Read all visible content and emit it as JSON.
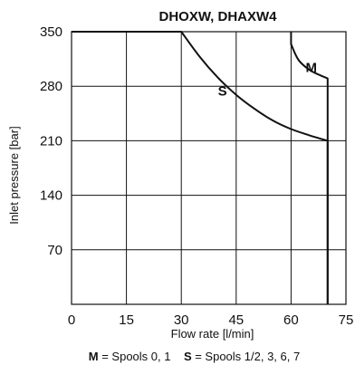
{
  "chart_data": {
    "type": "line",
    "title": "DHOXW, DHAXW4",
    "xlabel": "Flow rate [l/min]",
    "ylabel": "Inlet pressure [bar]",
    "xlim": [
      0,
      75
    ],
    "ylim": [
      0,
      350
    ],
    "xticks": [
      "0",
      "15",
      "30",
      "45",
      "60",
      "75"
    ],
    "yticks": [
      "70",
      "140",
      "210",
      "280",
      "350"
    ],
    "grid": true,
    "series": [
      {
        "name": "S",
        "points": [
          [
            0,
            350
          ],
          [
            30,
            350
          ],
          [
            35,
            318
          ],
          [
            40,
            291
          ],
          [
            45,
            269
          ],
          [
            50,
            251
          ],
          [
            55,
            236
          ],
          [
            60,
            225
          ],
          [
            65,
            217
          ],
          [
            70,
            210
          ],
          [
            70,
            0
          ]
        ]
      },
      {
        "name": "M",
        "points": [
          [
            60,
            350
          ],
          [
            60,
            334
          ],
          [
            62,
            314
          ],
          [
            65,
            301
          ],
          [
            68,
            294
          ],
          [
            70,
            290
          ],
          [
            70,
            0
          ]
        ]
      }
    ],
    "note": {
      "m_key": "M",
      "m_text": " = Spools 0, 1",
      "s_key": "S",
      "s_text": " = Spools 1/2, 3, 6, 7"
    }
  }
}
